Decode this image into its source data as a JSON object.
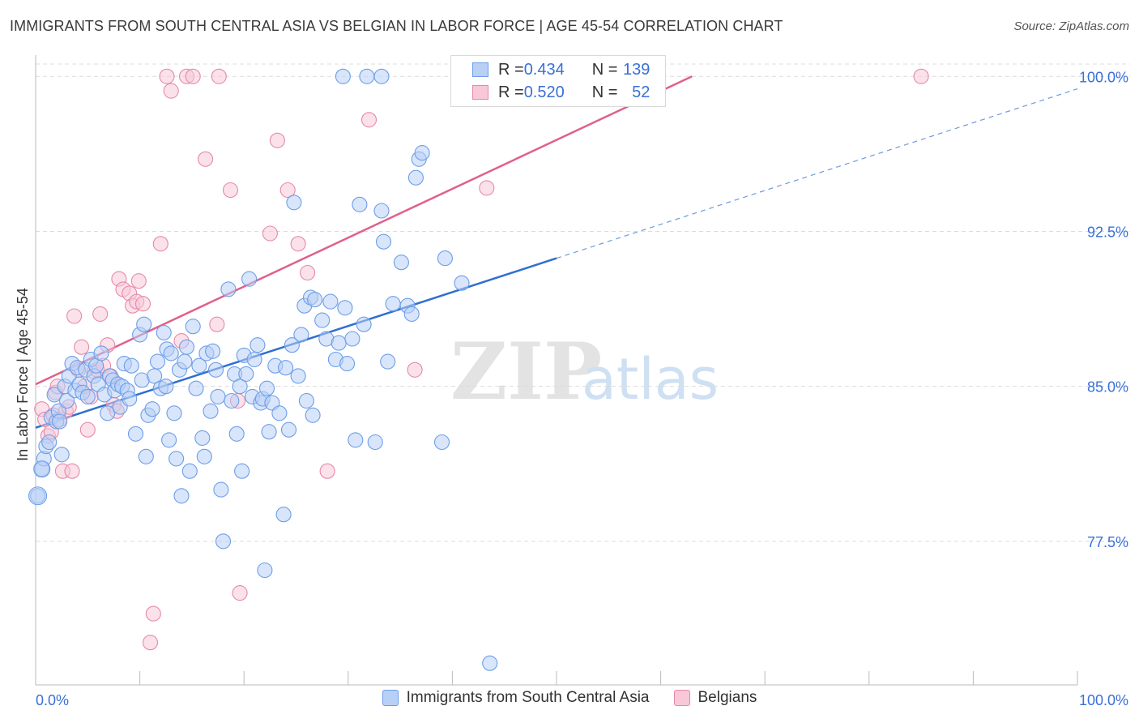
{
  "header": {
    "title": "IMMIGRANTS FROM SOUTH CENTRAL ASIA VS BELGIAN IN LABOR FORCE | AGE 45-54 CORRELATION CHART",
    "source": "Source: ZipAtlas.com"
  },
  "watermark": {
    "zip": "ZIP",
    "atlas": "atlas"
  },
  "legend_top": {
    "rows": [
      {
        "r_label": "R = ",
        "r_value": "0.434",
        "n_label": "N = ",
        "n_value": "139",
        "color": "#6d9ee8",
        "fill": "#b8d0f5"
      },
      {
        "r_label": "R = ",
        "r_value": "0.520",
        "n_label": "N = ",
        "n_value": "52",
        "color": "#e58aa8",
        "fill": "#f8c8d8"
      }
    ]
  },
  "legend_bottom": {
    "items": [
      {
        "label": "Immigrants from South Central Asia",
        "color": "#6d9ee8",
        "fill": "#b8d0f5"
      },
      {
        "label": "Belgians",
        "color": "#e58aa8",
        "fill": "#f8c8d8"
      }
    ]
  },
  "colors": {
    "blue_stroke": "#6d9ee8",
    "blue_fill": "#b8d0f5",
    "blue_line": "#2f6fd0",
    "pink_stroke": "#e58aa8",
    "pink_fill": "#f8c8d8",
    "pink_line": "#e0608a",
    "tick_label": "#3a6fd8",
    "grid": "#dcdcdc",
    "axis": "#bbbbbb"
  },
  "chart_data": {
    "type": "scatter",
    "title": "IMMIGRANTS FROM SOUTH CENTRAL ASIA VS BELGIAN IN LABOR FORCE | AGE 45-54 CORRELATION CHART",
    "xlabel": "",
    "ylabel": "In Labor Force | Age 45-54",
    "xlim": [
      0,
      100
    ],
    "ylim": [
      70.55,
      100.6
    ],
    "x_tick_labels": [
      "0.0%",
      "100.0%"
    ],
    "y_ticks": [
      77.5,
      85.0,
      92.5,
      100.0
    ],
    "y_tick_labels": [
      "77.5%",
      "85.0%",
      "92.5%",
      "100.0%"
    ],
    "grid": true,
    "legend_position": "top-center",
    "series": [
      {
        "name": "Immigrants from South Central Asia",
        "r": 0.434,
        "n": 139,
        "trend": {
          "x": [
            0,
            50
          ],
          "y": [
            83.0,
            91.2
          ]
        },
        "trend_extension": {
          "x": [
            50,
            100
          ],
          "y": [
            91.2,
            99.4
          ]
        },
        "points": [
          [
            0.2,
            79.7
          ],
          [
            0.6,
            81.0
          ],
          [
            0.8,
            81.5
          ],
          [
            1.0,
            82.1
          ],
          [
            1.3,
            82.3
          ],
          [
            1.5,
            83.5
          ],
          [
            1.8,
            84.6
          ],
          [
            2.0,
            83.3
          ],
          [
            2.2,
            83.8
          ],
          [
            2.3,
            83.3
          ],
          [
            2.5,
            81.7
          ],
          [
            2.8,
            85.0
          ],
          [
            3.0,
            84.3
          ],
          [
            3.2,
            85.5
          ],
          [
            3.5,
            86.1
          ],
          [
            3.8,
            84.8
          ],
          [
            4.0,
            85.9
          ],
          [
            4.2,
            85.1
          ],
          [
            4.5,
            84.7
          ],
          [
            4.8,
            85.8
          ],
          [
            5.0,
            84.5
          ],
          [
            5.3,
            86.3
          ],
          [
            5.6,
            85.5
          ],
          [
            5.8,
            86.0
          ],
          [
            6.0,
            85.1
          ],
          [
            6.3,
            86.6
          ],
          [
            6.6,
            84.6
          ],
          [
            6.9,
            83.7
          ],
          [
            7.1,
            85.5
          ],
          [
            7.4,
            85.3
          ],
          [
            7.6,
            84.8
          ],
          [
            7.9,
            85.1
          ],
          [
            8.1,
            84.0
          ],
          [
            8.3,
            85.0
          ],
          [
            8.5,
            86.1
          ],
          [
            8.8,
            84.8
          ],
          [
            9.0,
            84.4
          ],
          [
            9.2,
            86.0
          ],
          [
            9.6,
            82.7
          ],
          [
            10.0,
            87.5
          ],
          [
            10.2,
            85.3
          ],
          [
            10.4,
            88.0
          ],
          [
            10.6,
            81.6
          ],
          [
            10.8,
            83.6
          ],
          [
            11.2,
            83.9
          ],
          [
            11.4,
            85.5
          ],
          [
            11.7,
            86.2
          ],
          [
            12.0,
            84.9
          ],
          [
            12.3,
            87.6
          ],
          [
            12.5,
            85.0
          ],
          [
            12.6,
            86.8
          ],
          [
            12.8,
            82.4
          ],
          [
            13.0,
            86.6
          ],
          [
            13.3,
            83.7
          ],
          [
            13.5,
            81.5
          ],
          [
            13.8,
            85.8
          ],
          [
            14.0,
            79.7
          ],
          [
            14.3,
            86.2
          ],
          [
            14.5,
            86.9
          ],
          [
            14.8,
            80.9
          ],
          [
            15.1,
            87.9
          ],
          [
            15.4,
            84.9
          ],
          [
            15.7,
            86.0
          ],
          [
            16.0,
            82.5
          ],
          [
            16.2,
            81.6
          ],
          [
            16.4,
            86.6
          ],
          [
            16.8,
            83.8
          ],
          [
            17.0,
            86.7
          ],
          [
            17.3,
            85.8
          ],
          [
            17.5,
            84.5
          ],
          [
            17.8,
            80.0
          ],
          [
            18.0,
            77.5
          ],
          [
            18.5,
            89.7
          ],
          [
            18.8,
            84.3
          ],
          [
            19.1,
            85.6
          ],
          [
            19.3,
            82.7
          ],
          [
            19.6,
            85.0
          ],
          [
            19.8,
            80.9
          ],
          [
            20.0,
            86.5
          ],
          [
            20.2,
            85.6
          ],
          [
            20.5,
            90.2
          ],
          [
            20.8,
            84.5
          ],
          [
            21.0,
            86.3
          ],
          [
            21.3,
            87.0
          ],
          [
            21.6,
            84.2
          ],
          [
            21.8,
            84.4
          ],
          [
            22.0,
            76.1
          ],
          [
            22.2,
            84.9
          ],
          [
            22.4,
            82.8
          ],
          [
            22.7,
            84.2
          ],
          [
            23.0,
            86.0
          ],
          [
            23.4,
            83.7
          ],
          [
            23.8,
            78.8
          ],
          [
            24.0,
            85.9
          ],
          [
            24.3,
            82.9
          ],
          [
            24.6,
            87.0
          ],
          [
            24.8,
            93.9
          ],
          [
            25.2,
            85.5
          ],
          [
            25.5,
            87.5
          ],
          [
            25.8,
            88.9
          ],
          [
            26.0,
            84.3
          ],
          [
            26.4,
            89.3
          ],
          [
            26.6,
            83.6
          ],
          [
            26.8,
            89.2
          ],
          [
            27.5,
            88.2
          ],
          [
            27.9,
            87.3
          ],
          [
            28.3,
            89.1
          ],
          [
            28.8,
            86.3
          ],
          [
            29.1,
            87.1
          ],
          [
            29.7,
            88.8
          ],
          [
            29.9,
            86.1
          ],
          [
            30.4,
            87.3
          ],
          [
            30.7,
            82.4
          ],
          [
            31.1,
            93.8
          ],
          [
            31.5,
            88.0
          ],
          [
            32.6,
            82.3
          ],
          [
            33.2,
            93.5
          ],
          [
            33.4,
            92.0
          ],
          [
            33.8,
            86.2
          ],
          [
            34.3,
            89.0
          ],
          [
            35.1,
            91.0
          ],
          [
            35.7,
            88.9
          ],
          [
            36.1,
            88.5
          ],
          [
            36.5,
            95.1
          ],
          [
            36.8,
            96.0
          ],
          [
            37.1,
            96.3
          ],
          [
            39.0,
            82.3
          ],
          [
            39.3,
            91.2
          ],
          [
            40.9,
            90.0
          ],
          [
            43.6,
            71.6
          ],
          [
            29.5,
            100.0
          ],
          [
            31.8,
            100.0
          ],
          [
            33.2,
            100.0
          ]
        ]
      },
      {
        "name": "Belgians",
        "r": 0.52,
        "n": 52,
        "trend": {
          "x": [
            0,
            63
          ],
          "y": [
            85.1,
            100.0
          ]
        },
        "points": [
          [
            0.6,
            83.9
          ],
          [
            0.9,
            83.4
          ],
          [
            1.2,
            82.6
          ],
          [
            1.5,
            82.8
          ],
          [
            1.7,
            83.6
          ],
          [
            1.9,
            84.7
          ],
          [
            2.1,
            85.0
          ],
          [
            2.3,
            83.4
          ],
          [
            2.6,
            80.9
          ],
          [
            2.9,
            83.8
          ],
          [
            3.2,
            84.0
          ],
          [
            3.5,
            80.9
          ],
          [
            3.7,
            88.4
          ],
          [
            4.1,
            85.8
          ],
          [
            4.4,
            86.9
          ],
          [
            4.7,
            85.0
          ],
          [
            5.0,
            82.9
          ],
          [
            5.3,
            84.5
          ],
          [
            5.6,
            85.7
          ],
          [
            5.9,
            85.8
          ],
          [
            6.2,
            88.5
          ],
          [
            6.5,
            86.0
          ],
          [
            6.9,
            87.0
          ],
          [
            7.2,
            85.5
          ],
          [
            7.5,
            84.1
          ],
          [
            7.8,
            83.8
          ],
          [
            8.0,
            90.2
          ],
          [
            8.4,
            89.7
          ],
          [
            9.0,
            89.5
          ],
          [
            9.3,
            88.9
          ],
          [
            9.7,
            89.1
          ],
          [
            9.9,
            90.1
          ],
          [
            10.3,
            89.0
          ],
          [
            11.0,
            72.6
          ],
          [
            11.3,
            74.0
          ],
          [
            12.0,
            91.9
          ],
          [
            12.6,
            100.0
          ],
          [
            13.0,
            99.3
          ],
          [
            14.0,
            87.2
          ],
          [
            14.5,
            100.0
          ],
          [
            15.1,
            100.0
          ],
          [
            16.3,
            96.0
          ],
          [
            17.4,
            88.0
          ],
          [
            17.6,
            100.0
          ],
          [
            18.7,
            94.5
          ],
          [
            19.4,
            84.3
          ],
          [
            19.6,
            75.0
          ],
          [
            22.5,
            92.4
          ],
          [
            23.2,
            96.9
          ],
          [
            24.2,
            94.5
          ],
          [
            25.2,
            91.9
          ],
          [
            26.1,
            90.5
          ],
          [
            28.0,
            80.9
          ],
          [
            32.0,
            97.9
          ],
          [
            36.4,
            85.8
          ],
          [
            43.3,
            94.6
          ],
          [
            85.0,
            100.0
          ]
        ]
      }
    ]
  }
}
